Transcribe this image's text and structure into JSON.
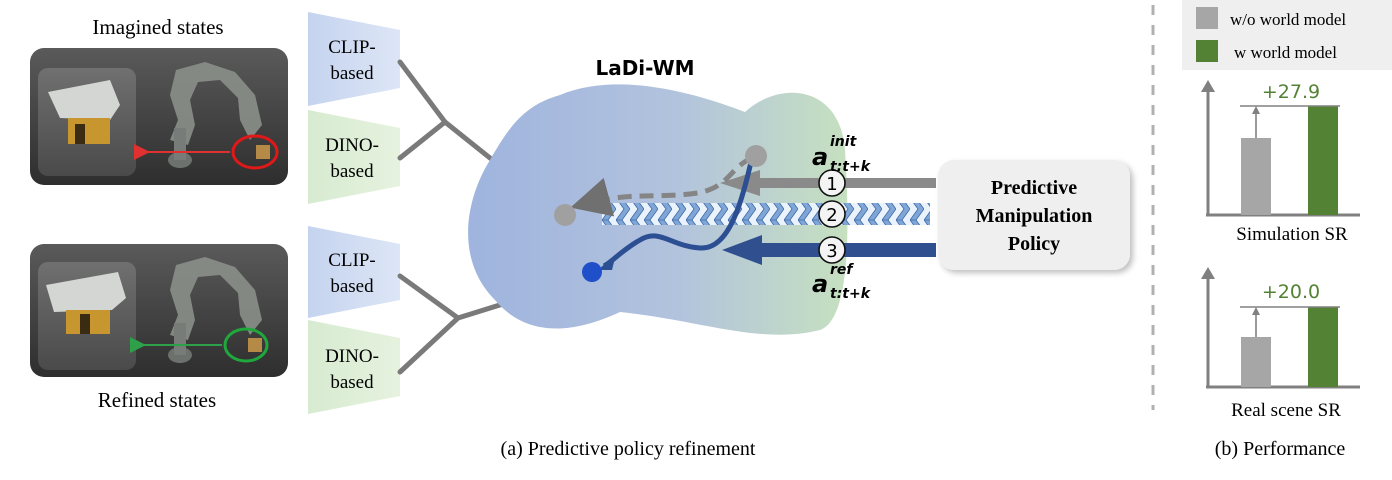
{
  "panel_a": {
    "top_label": "Imagined states",
    "bottom_label": "Refined states",
    "caption": "(a) Predictive policy refinement",
    "encoders": [
      {
        "line1": "CLIP-",
        "line2": "based"
      },
      {
        "line1": "DINO-",
        "line2": "based"
      },
      {
        "line1": "CLIP-",
        "line2": "based"
      },
      {
        "line1": "DINO-",
        "line2": "based"
      }
    ],
    "world_model_title": "LaDi-WM",
    "action_init": {
      "base": "a",
      "sup": "init",
      "sub": "t:t+k"
    },
    "action_ref": {
      "base": "a",
      "sup": "ref",
      "sub": "t:t+k"
    },
    "steps": [
      "1",
      "2",
      "3"
    ],
    "policy": {
      "line1": "Predictive",
      "line2": "Manipulation",
      "line3": "Policy"
    }
  },
  "panel_b": {
    "caption": "(b) Performance",
    "legend": [
      {
        "label": "w/o world model",
        "color": "#a6a6a6"
      },
      {
        "label": "w world model",
        "color": "#548235"
      }
    ],
    "charts": [
      {
        "label": "Simulation SR",
        "improvement": "+27.9"
      },
      {
        "label": "Real scene SR",
        "improvement": "+20.0"
      }
    ],
    "colors": {
      "improvement_text": "#548235"
    }
  },
  "chart_data": [
    {
      "type": "bar",
      "xlabel": "Simulation SR",
      "categories": [
        "w/o world model",
        "w world model"
      ],
      "annotation": "+27.9"
    },
    {
      "type": "bar",
      "xlabel": "Real scene SR",
      "categories": [
        "w/o world model",
        "w world model"
      ],
      "annotation": "+20.0"
    }
  ]
}
